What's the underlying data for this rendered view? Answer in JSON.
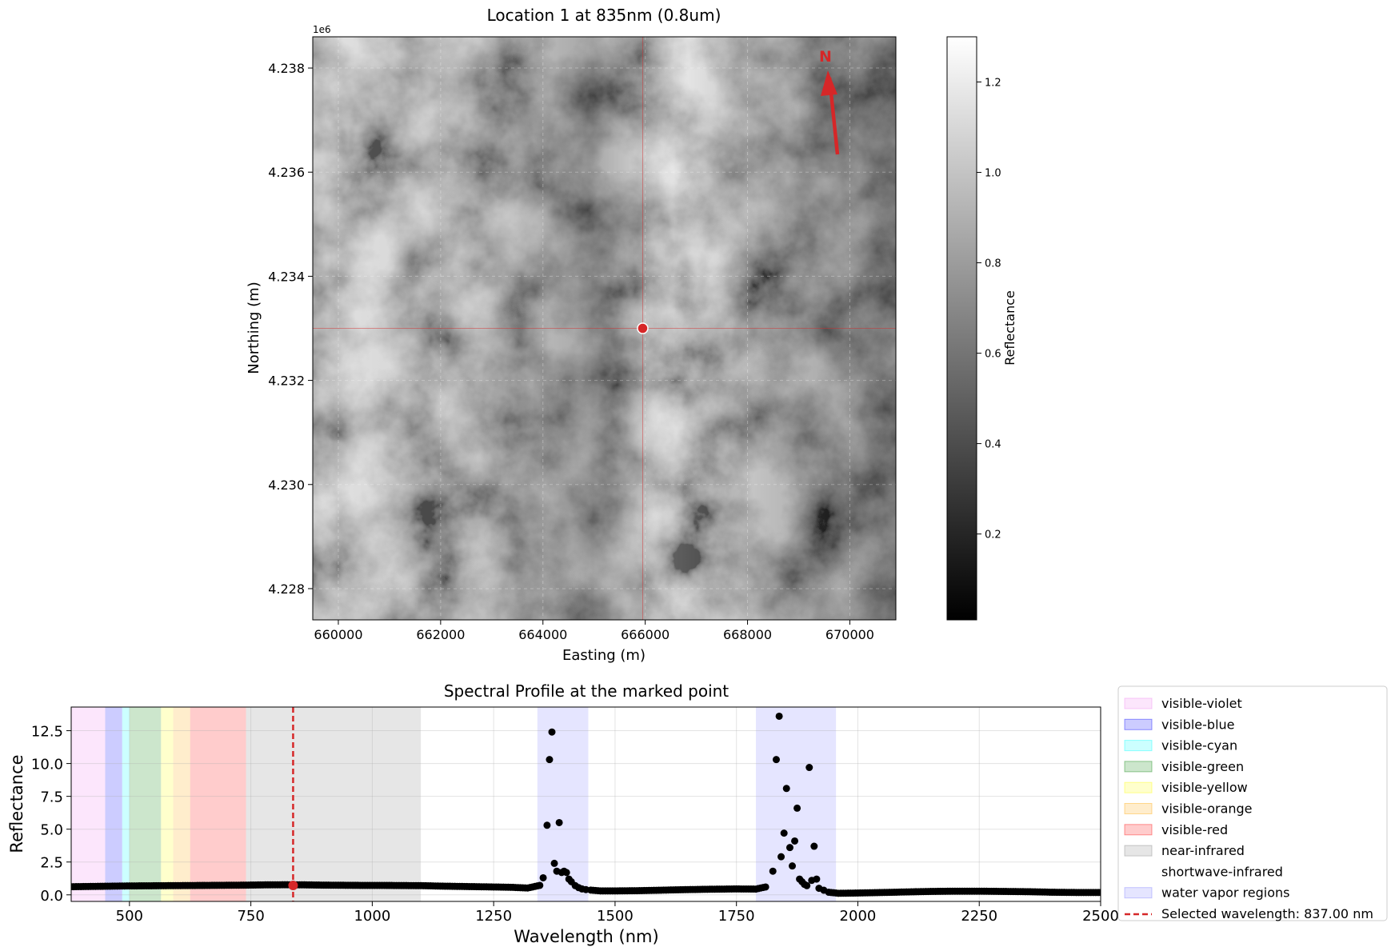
{
  "chart_data": [
    {
      "type": "heatmap",
      "title": "Location 1 at 835nm (0.8um)",
      "xlabel": "Easting (m)",
      "ylabel": "Northing (m)",
      "y_offset_label": "1e6",
      "xlim": [
        659500,
        670900
      ],
      "ylim": [
        4227400,
        4238600
      ],
      "xticks": [
        {
          "value": 660000,
          "label": "660000"
        },
        {
          "value": 662000,
          "label": "662000"
        },
        {
          "value": 664000,
          "label": "664000"
        },
        {
          "value": 666000,
          "label": "666000"
        },
        {
          "value": 668000,
          "label": "668000"
        },
        {
          "value": 670000,
          "label": "670000"
        }
      ],
      "yticks": [
        {
          "value": 4228000,
          "label": "4.228"
        },
        {
          "value": 4230000,
          "label": "4.230"
        },
        {
          "value": 4232000,
          "label": "4.232"
        },
        {
          "value": 4234000,
          "label": "4.234"
        },
        {
          "value": 4236000,
          "label": "4.236"
        },
        {
          "value": 4238000,
          "label": "4.238"
        }
      ],
      "grid": true,
      "marked_point": {
        "x": 665950,
        "y": 4233000
      },
      "north_arrow": {
        "label": "N",
        "color": "#d62728"
      },
      "colormap": "gray",
      "colorbar": {
        "label": "Reflectance",
        "range": [
          0.01,
          1.3
        ],
        "ticks": [
          {
            "value": 0.2,
            "label": "0.2"
          },
          {
            "value": 0.4,
            "label": "0.4"
          },
          {
            "value": 0.6,
            "label": "0.6"
          },
          {
            "value": 0.8,
            "label": "0.8"
          },
          {
            "value": 1.0,
            "label": "1.0"
          },
          {
            "value": 1.2,
            "label": "1.2"
          }
        ]
      }
    },
    {
      "type": "scatter",
      "title": "Spectral Profile at the marked point",
      "xlabel": "Wavelength (nm)",
      "ylabel": "Reflectance",
      "xlim": [
        380,
        2500
      ],
      "ylim": [
        -0.5,
        14.3
      ],
      "xticks": [
        {
          "value": 500,
          "label": "500"
        },
        {
          "value": 750,
          "label": "750"
        },
        {
          "value": 1000,
          "label": "1000"
        },
        {
          "value": 1250,
          "label": "1250"
        },
        {
          "value": 1500,
          "label": "1500"
        },
        {
          "value": 1750,
          "label": "1750"
        },
        {
          "value": 2000,
          "label": "2000"
        },
        {
          "value": 2250,
          "label": "2250"
        },
        {
          "value": 2500,
          "label": "2500"
        }
      ],
      "yticks": [
        {
          "value": 0,
          "label": "0.0"
        },
        {
          "value": 2.5,
          "label": "2.5"
        },
        {
          "value": 5,
          "label": "5.0"
        },
        {
          "value": 7.5,
          "label": "7.5"
        },
        {
          "value": 10,
          "label": "10.0"
        },
        {
          "value": 12.5,
          "label": "12.5"
        }
      ],
      "grid": true,
      "legend_position": "outside-right",
      "regions": [
        {
          "name": "visible-violet",
          "start": 380,
          "end": 450,
          "color": "#ee82ee",
          "alpha": 0.2
        },
        {
          "name": "visible-blue",
          "start": 450,
          "end": 485,
          "color": "#0000ff",
          "alpha": 0.2
        },
        {
          "name": "visible-cyan",
          "start": 485,
          "end": 500,
          "color": "#00ffff",
          "alpha": 0.2
        },
        {
          "name": "visible-green",
          "start": 500,
          "end": 565,
          "color": "#008000",
          "alpha": 0.2
        },
        {
          "name": "visible-yellow",
          "start": 565,
          "end": 590,
          "color": "#ffff00",
          "alpha": 0.2
        },
        {
          "name": "visible-orange",
          "start": 590,
          "end": 625,
          "color": "#ffa500",
          "alpha": 0.2
        },
        {
          "name": "visible-red",
          "start": 625,
          "end": 740,
          "color": "#ff0000",
          "alpha": 0.2
        },
        {
          "name": "near-infrared",
          "start": 740,
          "end": 1100,
          "color": "#808080",
          "alpha": 0.2
        },
        {
          "name": "shortwave-infrared",
          "start": 1100,
          "end": 2500,
          "color": "#ffffff",
          "alpha": 0.2
        },
        {
          "name": "water vapor regions",
          "spans": [
            [
              1340,
              1445
            ],
            [
              1790,
              1955
            ]
          ],
          "color": "#0000ff",
          "alpha": 0.1
        }
      ],
      "selected_wavelength": {
        "value": 837,
        "label": "Selected wavelength: 837.00 nm",
        "color": "#d62728",
        "y": 0.72
      },
      "series": [
        {
          "color": "#000000",
          "points": [
            [
              380,
              0.62
            ],
            [
              420,
              0.64
            ],
            [
              460,
              0.66
            ],
            [
              500,
              0.68
            ],
            [
              540,
              0.69
            ],
            [
              580,
              0.7
            ],
            [
              620,
              0.71
            ],
            [
              660,
              0.72
            ],
            [
              700,
              0.73
            ],
            [
              740,
              0.74
            ],
            [
              780,
              0.76
            ],
            [
              820,
              0.77
            ],
            [
              860,
              0.76
            ],
            [
              900,
              0.74
            ],
            [
              940,
              0.73
            ],
            [
              980,
              0.72
            ],
            [
              1020,
              0.72
            ],
            [
              1060,
              0.71
            ],
            [
              1100,
              0.7
            ],
            [
              1150,
              0.66
            ],
            [
              1200,
              0.63
            ],
            [
              1250,
              0.6
            ],
            [
              1290,
              0.57
            ],
            [
              1320,
              0.52
            ],
            [
              1345,
              0.72
            ],
            [
              1352,
              1.3
            ],
            [
              1360,
              5.3
            ],
            [
              1365,
              10.3
            ],
            [
              1370,
              12.4
            ],
            [
              1375,
              2.4
            ],
            [
              1380,
              1.8
            ],
            [
              1385,
              5.5
            ],
            [
              1390,
              1.7
            ],
            [
              1395,
              1.8
            ],
            [
              1400,
              1.7
            ],
            [
              1405,
              1.2
            ],
            [
              1410,
              1.0
            ],
            [
              1418,
              0.7
            ],
            [
              1425,
              0.55
            ],
            [
              1432,
              0.45
            ],
            [
              1440,
              0.4
            ],
            [
              1450,
              0.36
            ],
            [
              1470,
              0.3
            ],
            [
              1500,
              0.3
            ],
            [
              1550,
              0.32
            ],
            [
              1600,
              0.36
            ],
            [
              1650,
              0.4
            ],
            [
              1700,
              0.43
            ],
            [
              1750,
              0.45
            ],
            [
              1790,
              0.44
            ],
            [
              1810,
              0.6
            ],
            [
              1825,
              1.8
            ],
            [
              1832,
              10.3
            ],
            [
              1838,
              13.6
            ],
            [
              1842,
              2.9
            ],
            [
              1848,
              4.7
            ],
            [
              1853,
              8.1
            ],
            [
              1860,
              3.6
            ],
            [
              1865,
              2.2
            ],
            [
              1870,
              4.1
            ],
            [
              1875,
              6.6
            ],
            [
              1880,
              1.2
            ],
            [
              1885,
              1.0
            ],
            [
              1890,
              0.8
            ],
            [
              1895,
              0.7
            ],
            [
              1900,
              9.7
            ],
            [
              1905,
              1.1
            ],
            [
              1910,
              3.7
            ],
            [
              1915,
              1.2
            ],
            [
              1920,
              0.5
            ],
            [
              1930,
              0.35
            ],
            [
              1940,
              0.2
            ],
            [
              1960,
              0.12
            ],
            [
              2000,
              0.14
            ],
            [
              2050,
              0.18
            ],
            [
              2100,
              0.22
            ],
            [
              2150,
              0.26
            ],
            [
              2200,
              0.28
            ],
            [
              2250,
              0.28
            ],
            [
              2300,
              0.26
            ],
            [
              2350,
              0.24
            ],
            [
              2400,
              0.2
            ],
            [
              2450,
              0.18
            ],
            [
              2500,
              0.18
            ]
          ]
        }
      ]
    }
  ]
}
